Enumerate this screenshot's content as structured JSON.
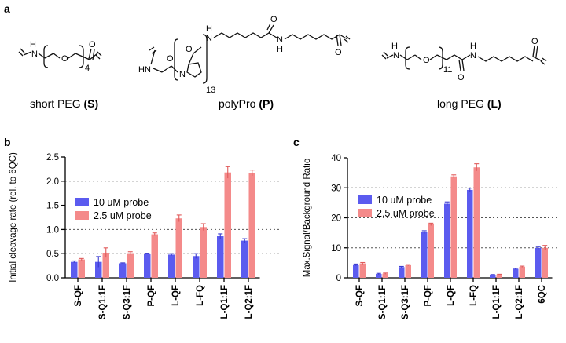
{
  "panel_labels": {
    "a": "a",
    "b": "b",
    "c": "c"
  },
  "structures": {
    "short_peg": {
      "label_prefix": "short PEG ",
      "label_code": "(S)",
      "subscript": "4",
      "atoms": {
        "nh": "N\nH",
        "o_chain": "O",
        "o_carbonyl": "O"
      }
    },
    "polypro": {
      "label_prefix": "polyPro ",
      "label_code": "(P)",
      "subscript": "13",
      "atoms": {
        "hn": "HN",
        "n_ring": "N",
        "o1": "O",
        "o2": "O",
        "o3": "O",
        "nh1": "H\nN",
        "nh2": "N\nH",
        "o4": "O"
      }
    },
    "long_peg": {
      "label_prefix": "long PEG ",
      "label_code": "(L)",
      "subscript": "11",
      "atoms": {
        "nh": "N\nH",
        "o_chain": "O",
        "o_amide": "O",
        "nh2": "N\nH",
        "o_end": "O"
      }
    }
  },
  "colors": {
    "series1": "#5b5bef",
    "series2": "#f48a8a",
    "grid": "#555555",
    "error1": "#3b3bd0",
    "error2": "#e05a5a"
  },
  "chart_data": [
    {
      "type": "bar",
      "panel": "b",
      "ylabel": "Initial cleavage rate (rel. to 6QC)",
      "categories": [
        "S-QF",
        "S-Q1:1F",
        "S-Q3:1F",
        "P-QF",
        "L-QF",
        "L-FQ",
        "L-Q1:1F",
        "L-Q2:1F"
      ],
      "series": [
        {
          "name": "10 uM probe",
          "values": [
            0.33,
            0.33,
            0.3,
            0.5,
            0.48,
            0.45,
            0.86,
            0.77
          ],
          "errors": [
            0.02,
            0.11,
            0.01,
            0.01,
            0.02,
            0.05,
            0.05,
            0.04
          ]
        },
        {
          "name": "2.5 uM probe",
          "values": [
            0.38,
            0.52,
            0.51,
            0.9,
            1.23,
            1.05,
            2.18,
            2.17
          ],
          "errors": [
            0.02,
            0.1,
            0.03,
            0.03,
            0.07,
            0.07,
            0.12,
            0.06
          ]
        }
      ],
      "ylim": [
        0,
        2.5
      ],
      "yticks": [
        "0.0",
        "0.5",
        "1.0",
        "1.5",
        "2.0",
        "2.5"
      ],
      "ytick_values": [
        0,
        0.5,
        1.0,
        1.5,
        2.0,
        2.5
      ],
      "gridlines": [
        0.5,
        1.0,
        2.0
      ]
    },
    {
      "type": "bar",
      "panel": "c",
      "ylabel": "Max.Signal/Background Ratio",
      "categories": [
        "S-QF",
        "S-Q1:1F",
        "S-Q3:1F",
        "P-QF",
        "L-QF",
        "L-FQ",
        "L-Q1:1F",
        "L-Q2:1F",
        "6QC"
      ],
      "series": [
        {
          "name": "10 uM probe",
          "values": [
            4.3,
            1.3,
            3.6,
            15.2,
            24.7,
            29.3,
            1.0,
            3.0,
            10.0
          ],
          "errors": [
            0.3,
            0.2,
            0.2,
            0.5,
            0.6,
            0.6,
            0.1,
            0.2,
            0.4
          ]
        },
        {
          "name": "2.5 uM probe",
          "values": [
            4.8,
            1.4,
            4.2,
            17.8,
            33.8,
            36.8,
            1.1,
            3.7,
            10.0
          ],
          "errors": [
            0.3,
            0.2,
            0.2,
            0.4,
            0.5,
            1.2,
            0.1,
            0.2,
            0.8
          ]
        }
      ],
      "ylim": [
        0,
        40
      ],
      "yticks": [
        "0",
        "10",
        "20",
        "30",
        "40"
      ],
      "ytick_values": [
        0,
        10,
        20,
        30,
        40
      ],
      "gridlines": [
        10,
        20,
        30
      ]
    }
  ]
}
